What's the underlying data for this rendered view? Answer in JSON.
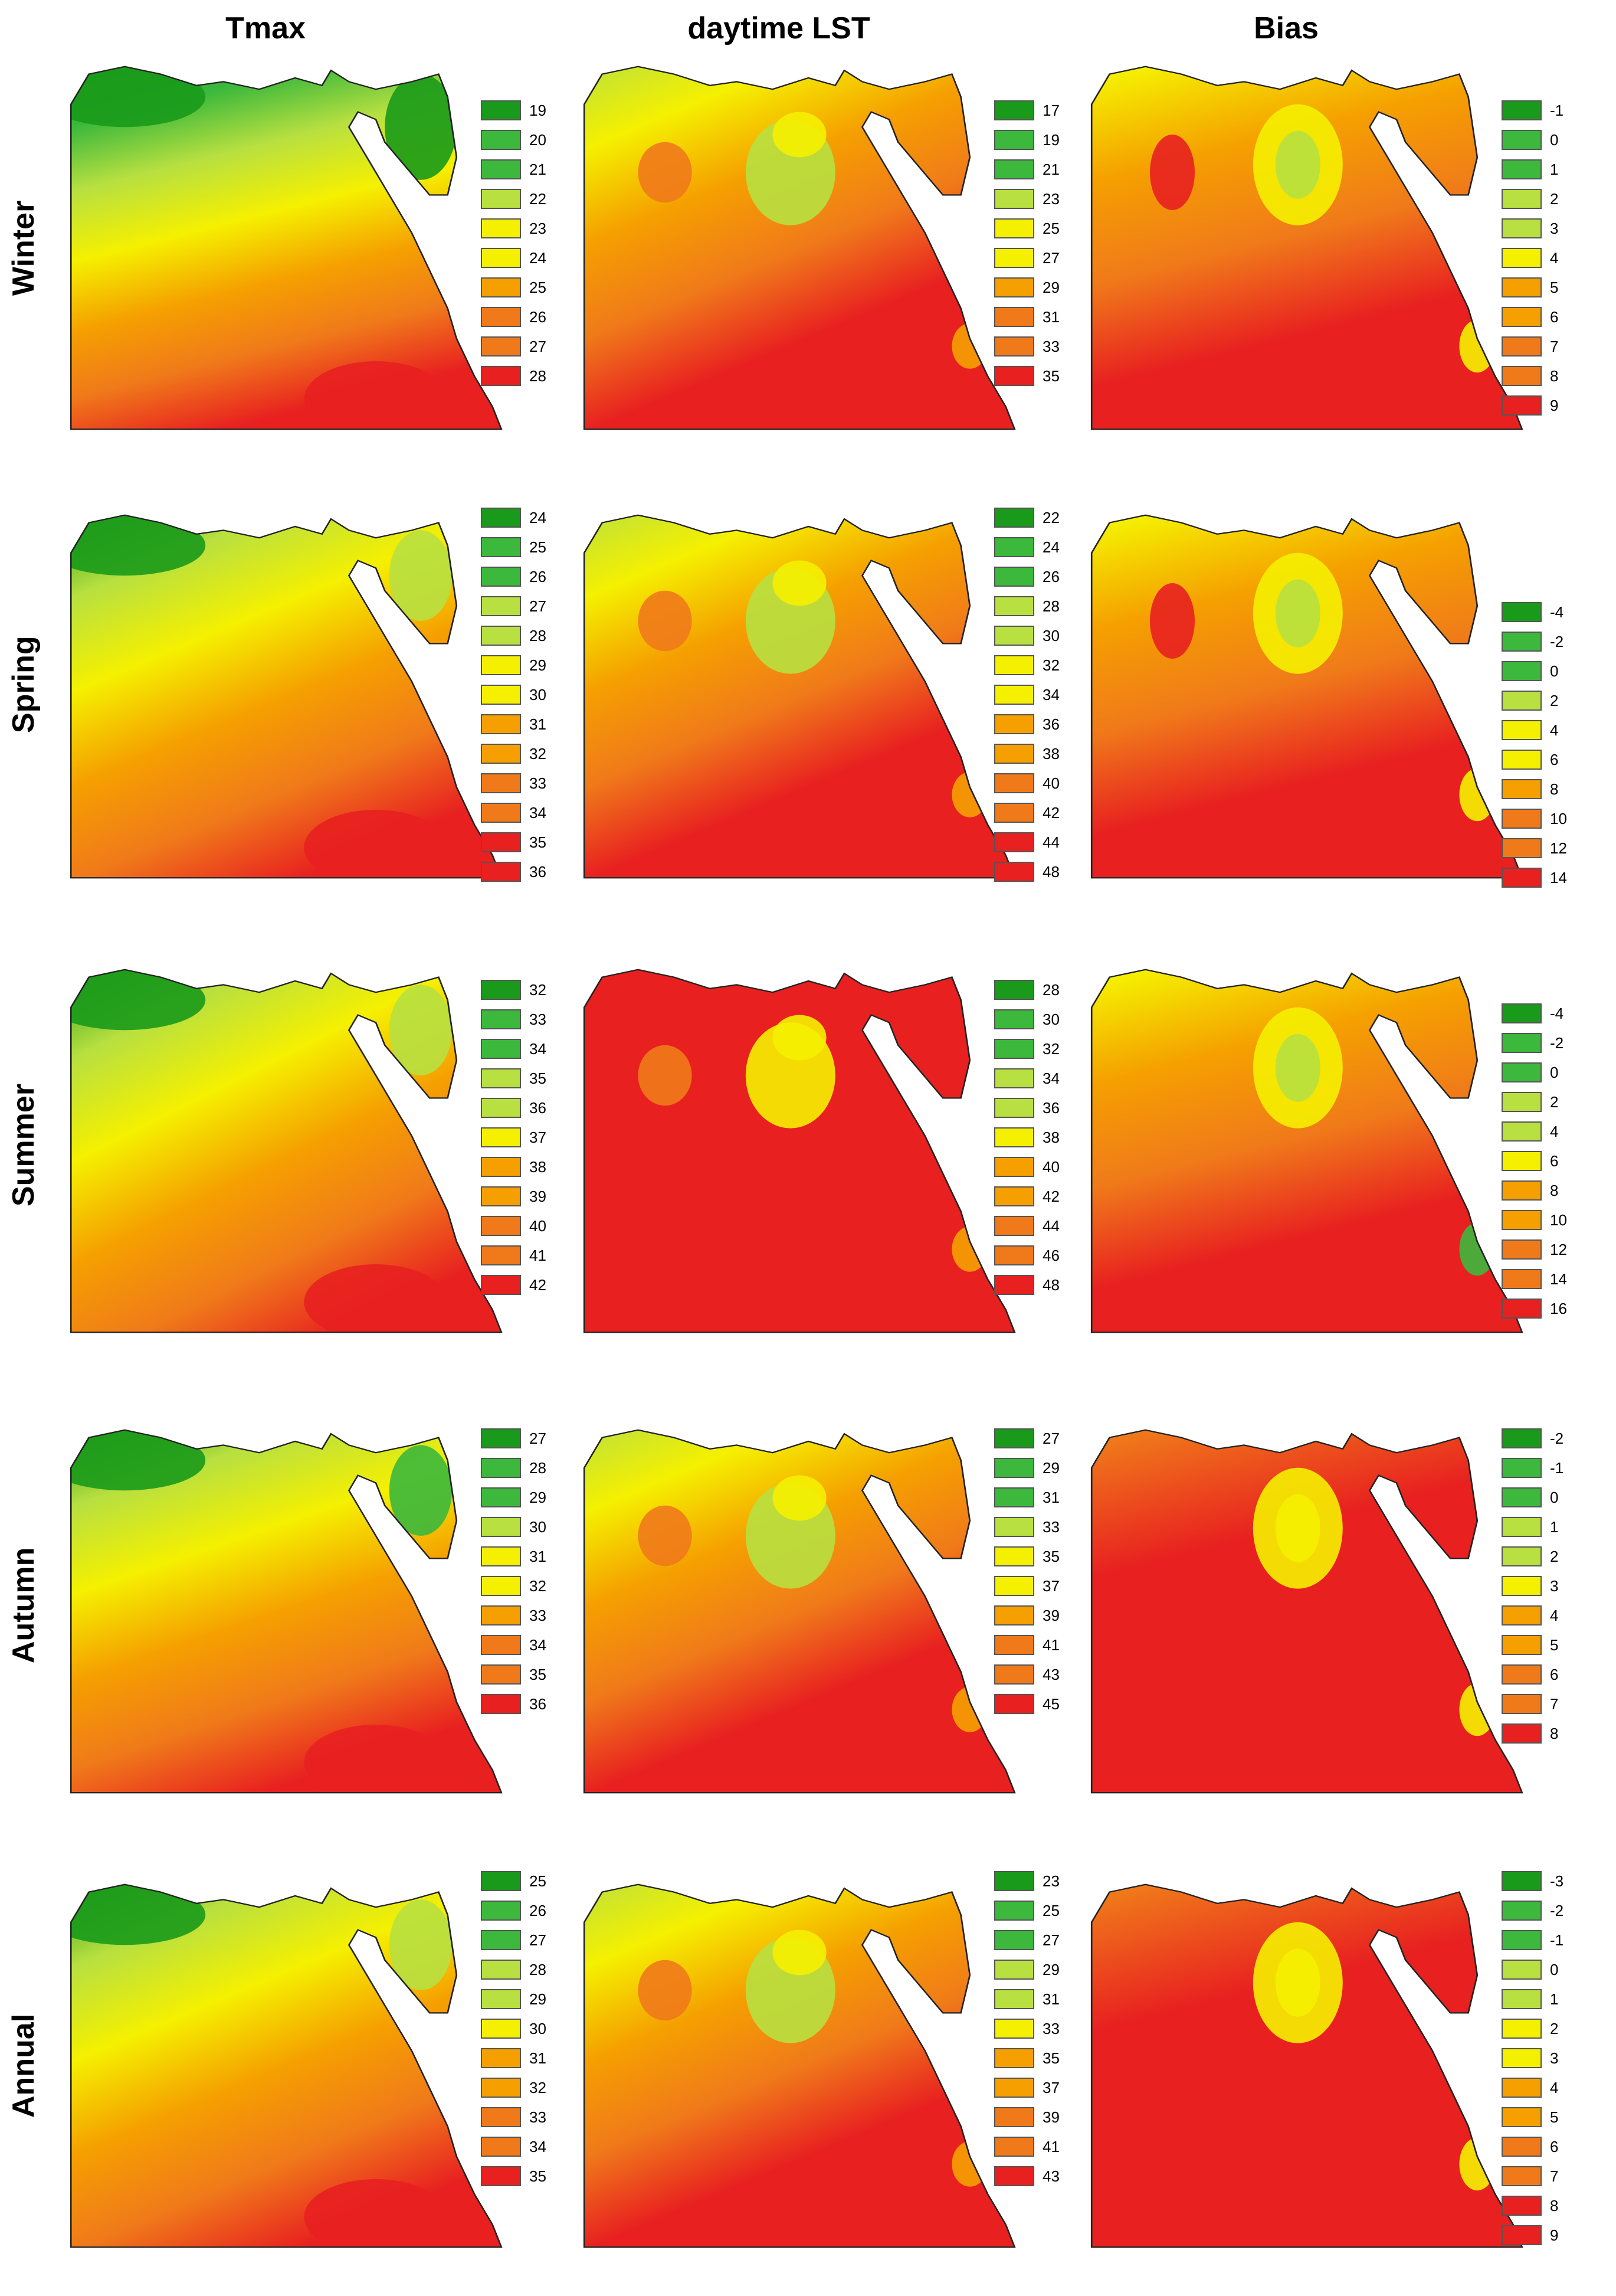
{
  "columns": [
    "Tmax",
    "daytime LST",
    "Bias"
  ],
  "rows": [
    "Winter",
    "Spring",
    "Summer",
    "Autumn",
    "Annual"
  ],
  "colors": {
    "dark_green": "#1a9a1a",
    "green": "#3cb83c",
    "yellow_green": "#b8e040",
    "yellow": "#f5f000",
    "orange": "#f5a000",
    "dark_orange": "#f07a1a",
    "red": "#e82020",
    "outline": "#222222"
  },
  "panels": [
    {
      "row": "Winter",
      "column": "Tmax",
      "legend": [
        "19",
        "20",
        "21",
        "22",
        "23",
        "24",
        "25",
        "26",
        "27",
        "28"
      ]
    },
    {
      "row": "Winter",
      "column": "daytime LST",
      "legend": [
        "17",
        "19",
        "21",
        "23",
        "25",
        "27",
        "29",
        "31",
        "33",
        "35"
      ]
    },
    {
      "row": "Winter",
      "column": "Bias",
      "legend": [
        "-1",
        "0",
        "1",
        "2",
        "3",
        "4",
        "5",
        "6",
        "7",
        "8",
        "9"
      ]
    },
    {
      "row": "Spring",
      "column": "Tmax",
      "legend": [
        "24",
        "25",
        "26",
        "27",
        "28",
        "29",
        "30",
        "31",
        "32",
        "33",
        "34",
        "35",
        "36"
      ]
    },
    {
      "row": "Spring",
      "column": "daytime LST",
      "legend": [
        "22",
        "24",
        "26",
        "28",
        "30",
        "32",
        "34",
        "36",
        "38",
        "40",
        "42",
        "44",
        "48"
      ]
    },
    {
      "row": "Spring",
      "column": "Bias",
      "legend": [
        "-4",
        "-2",
        "0",
        "2",
        "4",
        "6",
        "8",
        "10",
        "12",
        "14"
      ]
    },
    {
      "row": "Summer",
      "column": "Tmax",
      "legend": [
        "32",
        "33",
        "34",
        "35",
        "36",
        "37",
        "38",
        "39",
        "40",
        "41",
        "42"
      ]
    },
    {
      "row": "Summer",
      "column": "daytime LST",
      "legend": [
        "28",
        "30",
        "32",
        "34",
        "36",
        "38",
        "40",
        "42",
        "44",
        "46",
        "48"
      ]
    },
    {
      "row": "Summer",
      "column": "Bias",
      "legend": [
        "-4",
        "-2",
        "0",
        "2",
        "4",
        "6",
        "8",
        "10",
        "12",
        "14",
        "16"
      ]
    },
    {
      "row": "Autumn",
      "column": "Tmax",
      "legend": [
        "27",
        "28",
        "29",
        "30",
        "31",
        "32",
        "33",
        "34",
        "35",
        "36"
      ]
    },
    {
      "row": "Autumn",
      "column": "daytime LST",
      "legend": [
        "27",
        "29",
        "31",
        "33",
        "35",
        "37",
        "39",
        "41",
        "43",
        "45"
      ]
    },
    {
      "row": "Autumn",
      "column": "Bias",
      "legend": [
        "-2",
        "-1",
        "0",
        "1",
        "2",
        "3",
        "4",
        "5",
        "6",
        "7",
        "8"
      ]
    },
    {
      "row": "Annual",
      "column": "Tmax",
      "legend": [
        "25",
        "26",
        "27",
        "28",
        "29",
        "30",
        "31",
        "32",
        "33",
        "34",
        "35"
      ]
    },
    {
      "row": "Annual",
      "column": "daytime LST",
      "legend": [
        "23",
        "25",
        "27",
        "29",
        "31",
        "33",
        "35",
        "37",
        "39",
        "41",
        "43"
      ]
    },
    {
      "row": "Annual",
      "column": "Bias",
      "legend": [
        "-3",
        "-2",
        "-1",
        "0",
        "1",
        "2",
        "3",
        "4",
        "5",
        "6",
        "7",
        "8",
        "9"
      ]
    }
  ]
}
